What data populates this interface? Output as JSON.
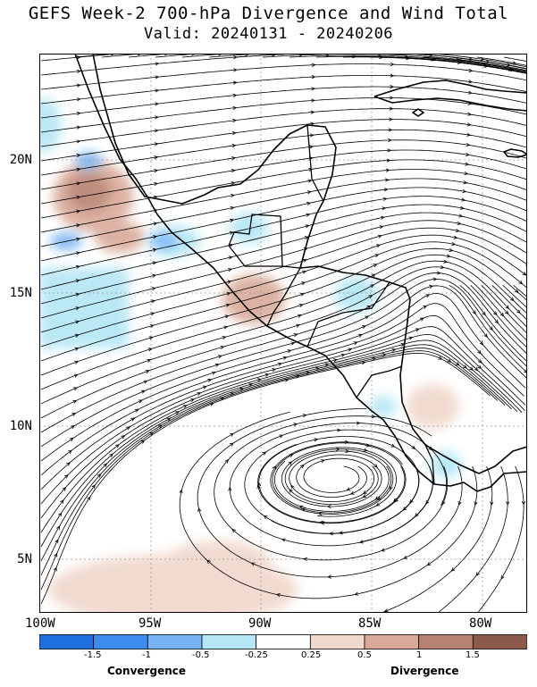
{
  "title_line1": "GEFS Week-2 700-hPa Divergence and Wind Total",
  "title_line2": "Valid: 20240131 - 20240206",
  "lat_labels": [
    "20N",
    "15N",
    "10N",
    "5N"
  ],
  "lon_labels": [
    "100W",
    "95W",
    "90W",
    "85W",
    "80W"
  ],
  "colorbar": {
    "colors": [
      "#1e6ee0",
      "#3c8cf0",
      "#78b4f5",
      "#b4e6f5",
      "#ffffff",
      "#f0d8cc",
      "#d9aa99",
      "#b88272",
      "#8c5a4a"
    ],
    "ticks": [
      "-1.5",
      "-1",
      "-0.5",
      "-0.25",
      "0.25",
      "0.5",
      "1",
      "1.5"
    ],
    "left_label": "Convergence",
    "right_label": "Divergence"
  },
  "map": {
    "lon_range": [
      -100,
      -78
    ],
    "lat_range": [
      3,
      24
    ],
    "gridlines": "dotted",
    "features": [
      "coastlines",
      "national borders",
      "wind streamlines",
      "divergence shading"
    ],
    "circulations": [
      {
        "kind": "anticyclone",
        "lon": -82,
        "lat": 15.3
      },
      {
        "kind": "anticyclone",
        "lon": -87,
        "lat": 8.5
      }
    ]
  }
}
